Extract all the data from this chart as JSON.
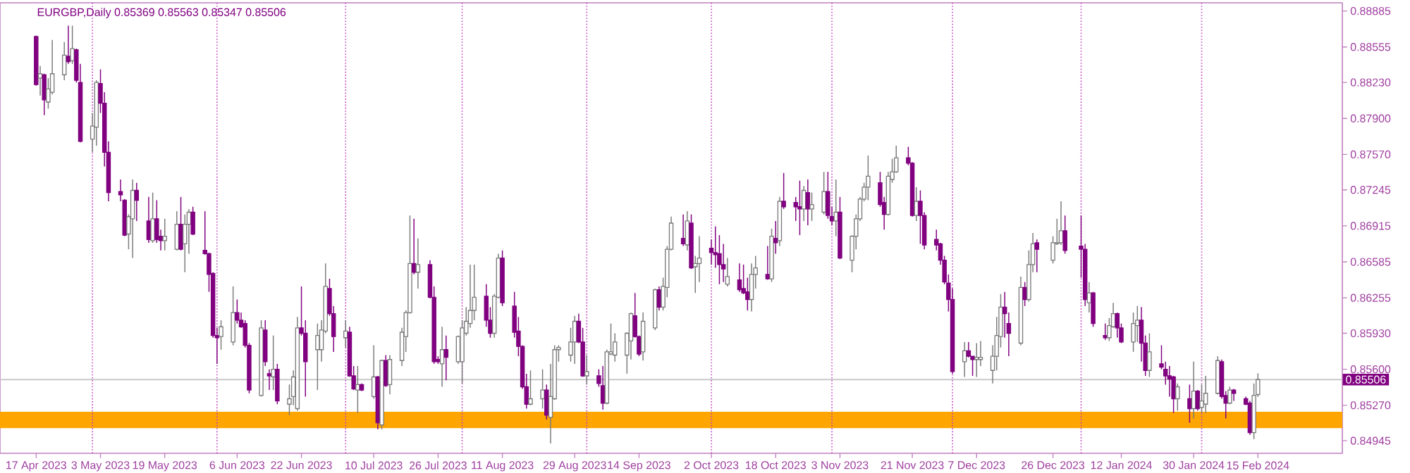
{
  "chart_data": {
    "type": "candlestick",
    "title": "EURGBP,Daily  0.85369 0.85563 0.85347 0.85506",
    "x": [
      "2023-04-17",
      "2023-04-18",
      "2023-04-19",
      "2023-04-20",
      "2023-04-21",
      "2023-04-24",
      "2023-04-25",
      "2023-04-26",
      "2023-04-27",
      "2023-04-28",
      "2023-05-01",
      "2023-05-02",
      "2023-05-03",
      "2023-05-04",
      "2023-05-05",
      "2023-05-08",
      "2023-05-09",
      "2023-05-10",
      "2023-05-11",
      "2023-05-12",
      "2023-05-15",
      "2023-05-16",
      "2023-05-17",
      "2023-05-18",
      "2023-05-19",
      "2023-05-22",
      "2023-05-23",
      "2023-05-24",
      "2023-05-25",
      "2023-05-26",
      "2023-05-29",
      "2023-05-30",
      "2023-05-31",
      "2023-06-01",
      "2023-06-02",
      "2023-06-05",
      "2023-06-06",
      "2023-06-07",
      "2023-06-08",
      "2023-06-09",
      "2023-06-12",
      "2023-06-13",
      "2023-06-14",
      "2023-06-15",
      "2023-06-16",
      "2023-06-19",
      "2023-06-20",
      "2023-06-21",
      "2023-06-22",
      "2023-06-23",
      "2023-06-26",
      "2023-06-27",
      "2023-06-28",
      "2023-06-29",
      "2023-06-30",
      "2023-07-03",
      "2023-07-04",
      "2023-07-05",
      "2023-07-06",
      "2023-07-07",
      "2023-07-10",
      "2023-07-11",
      "2023-07-12",
      "2023-07-13",
      "2023-07-14",
      "2023-07-17",
      "2023-07-18",
      "2023-07-19",
      "2023-07-20",
      "2023-07-21",
      "2023-07-24",
      "2023-07-25",
      "2023-07-26",
      "2023-07-27",
      "2023-07-28",
      "2023-07-31",
      "2023-08-01",
      "2023-08-02",
      "2023-08-03",
      "2023-08-04",
      "2023-08-07",
      "2023-08-08",
      "2023-08-09",
      "2023-08-10",
      "2023-08-11",
      "2023-08-14",
      "2023-08-15",
      "2023-08-16",
      "2023-08-17",
      "2023-08-18",
      "2023-08-21",
      "2023-08-22",
      "2023-08-23",
      "2023-08-24",
      "2023-08-25",
      "2023-08-28",
      "2023-08-29",
      "2023-08-30",
      "2023-08-31",
      "2023-09-01",
      "2023-09-04",
      "2023-09-05",
      "2023-09-06",
      "2023-09-07",
      "2023-09-08",
      "2023-09-11",
      "2023-09-12",
      "2023-09-13",
      "2023-09-14",
      "2023-09-15",
      "2023-09-18",
      "2023-09-19",
      "2023-09-20",
      "2023-09-21",
      "2023-09-22",
      "2023-09-25",
      "2023-09-26",
      "2023-09-27",
      "2023-09-28",
      "2023-09-29",
      "2023-10-02",
      "2023-10-03",
      "2023-10-04",
      "2023-10-05",
      "2023-10-06",
      "2023-10-09",
      "2023-10-10",
      "2023-10-11",
      "2023-10-12",
      "2023-10-13",
      "2023-10-16",
      "2023-10-17",
      "2023-10-18",
      "2023-10-19",
      "2023-10-20",
      "2023-10-23",
      "2023-10-24",
      "2023-10-25",
      "2023-10-26",
      "2023-10-27",
      "2023-10-30",
      "2023-10-31",
      "2023-11-01",
      "2023-11-02",
      "2023-11-03",
      "2023-11-06",
      "2023-11-07",
      "2023-11-08",
      "2023-11-09",
      "2023-11-10",
      "2023-11-13",
      "2023-11-14",
      "2023-11-15",
      "2023-11-16",
      "2023-11-17",
      "2023-11-20",
      "2023-11-21",
      "2023-11-22",
      "2023-11-23",
      "2023-11-24",
      "2023-11-27",
      "2023-11-28",
      "2023-11-29",
      "2023-11-30",
      "2023-12-01",
      "2023-12-04",
      "2023-12-05",
      "2023-12-06",
      "2023-12-07",
      "2023-12-08",
      "2023-12-11",
      "2023-12-12",
      "2023-12-13",
      "2023-12-14",
      "2023-12-15",
      "2023-12-18",
      "2023-12-19",
      "2023-12-20",
      "2023-12-21",
      "2023-12-22",
      "2023-12-26",
      "2023-12-27",
      "2023-12-28",
      "2023-12-29",
      "2024-01-02",
      "2024-01-03",
      "2024-01-04",
      "2024-01-05",
      "2024-01-08",
      "2024-01-09",
      "2024-01-10",
      "2024-01-11",
      "2024-01-12",
      "2024-01-15",
      "2024-01-16",
      "2024-01-17",
      "2024-01-18",
      "2024-01-19",
      "2024-01-22",
      "2024-01-23",
      "2024-01-24",
      "2024-01-25",
      "2024-01-26",
      "2024-01-29",
      "2024-01-30",
      "2024-01-31",
      "2024-02-01",
      "2024-02-02",
      "2024-02-05",
      "2024-02-06",
      "2024-02-07",
      "2024-02-08",
      "2024-02-09",
      "2024-02-12",
      "2024-02-13",
      "2024-02-14",
      "2024-02-15"
    ],
    "ohlc": [
      [
        0.8865,
        0.8866,
        0.882,
        0.8821
      ],
      [
        0.8827,
        0.8838,
        0.8811,
        0.8831
      ],
      [
        0.883,
        0.8831,
        0.8793,
        0.8807
      ],
      [
        0.8805,
        0.8827,
        0.8799,
        0.8817
      ],
      [
        0.8814,
        0.8862,
        0.8812,
        0.8831
      ],
      [
        0.883,
        0.886,
        0.8825,
        0.8848
      ],
      [
        0.8847,
        0.8875,
        0.884,
        0.8842
      ],
      [
        0.8843,
        0.8875,
        0.884,
        0.8854
      ],
      [
        0.8853,
        0.8854,
        0.8823,
        0.8825
      ],
      [
        0.8823,
        0.884,
        0.8768,
        0.8769
      ],
      [
        0.8771,
        0.8795,
        0.8759,
        0.8783
      ],
      [
        0.8782,
        0.8825,
        0.8765,
        0.8823
      ],
      [
        0.8822,
        0.8835,
        0.8795,
        0.8804
      ],
      [
        0.8804,
        0.8814,
        0.8746,
        0.8759
      ],
      [
        0.8759,
        0.8769,
        0.8714,
        0.8722
      ],
      [
        0.8723,
        0.8734,
        0.8714,
        0.872
      ],
      [
        0.8715,
        0.8716,
        0.8682,
        0.8683
      ],
      [
        0.8684,
        0.8702,
        0.867,
        0.87
      ],
      [
        0.8698,
        0.8734,
        0.8662,
        0.8724
      ],
      [
        0.8724,
        0.8731,
        0.8696,
        0.8715
      ],
      [
        0.8696,
        0.8718,
        0.8676,
        0.8679
      ],
      [
        0.8678,
        0.8722,
        0.8676,
        0.8698
      ],
      [
        0.8698,
        0.8715,
        0.8676,
        0.8679
      ],
      [
        0.8682,
        0.8688,
        0.8669,
        0.8678
      ],
      [
        0.8678,
        0.8698,
        0.8669,
        0.8682
      ],
      [
        0.867,
        0.8705,
        0.8669,
        0.8693
      ],
      [
        0.8693,
        0.8718,
        0.8669,
        0.867
      ],
      [
        0.8675,
        0.8702,
        0.8649,
        0.8693
      ],
      [
        0.8693,
        0.8707,
        0.8666,
        0.8704
      ],
      [
        0.8704,
        0.8709,
        0.8683,
        0.8684
      ],
      [
        0.8669,
        0.8705,
        0.8665,
        0.8666
      ],
      [
        0.8666,
        0.8667,
        0.8631,
        0.8647
      ],
      [
        0.8648,
        0.8649,
        0.8589,
        0.8591
      ],
      [
        0.8591,
        0.8598,
        0.8565,
        0.8589
      ],
      [
        0.859,
        0.8605,
        0.8578,
        0.8599
      ],
      [
        0.8585,
        0.8636,
        0.8582,
        0.8612
      ],
      [
        0.8612,
        0.8624,
        0.8602,
        0.8605
      ],
      [
        0.8605,
        0.8612,
        0.8598,
        0.8599
      ],
      [
        0.8602,
        0.8605,
        0.858,
        0.8582
      ],
      [
        0.8582,
        0.8584,
        0.8538,
        0.8541
      ],
      [
        0.8536,
        0.8605,
        0.8535,
        0.8598
      ],
      [
        0.8596,
        0.8605,
        0.8563,
        0.8567
      ],
      [
        0.8556,
        0.856,
        0.8541,
        0.8554
      ],
      [
        0.8553,
        0.8591,
        0.8541,
        0.856
      ],
      [
        0.856,
        0.8565,
        0.8528,
        0.8531
      ],
      [
        0.8528,
        0.8546,
        0.8518,
        0.8533
      ],
      [
        0.8535,
        0.8559,
        0.8527,
        0.8553
      ],
      [
        0.8524,
        0.8608,
        0.8522,
        0.8598
      ],
      [
        0.8598,
        0.8636,
        0.8591,
        0.8593
      ],
      [
        0.8593,
        0.8605,
        0.8535,
        0.8567
      ],
      [
        0.8578,
        0.8602,
        0.8541,
        0.8591
      ],
      [
        0.8578,
        0.8605,
        0.8567,
        0.8596
      ],
      [
        0.8595,
        0.8657,
        0.8593,
        0.8636
      ],
      [
        0.8634,
        0.8643,
        0.8609,
        0.8611
      ],
      [
        0.8611,
        0.8618,
        0.8576,
        0.859
      ],
      [
        0.8589,
        0.8605,
        0.858,
        0.8595
      ],
      [
        0.8594,
        0.8599,
        0.8553,
        0.8554
      ],
      [
        0.8554,
        0.8563,
        0.8541,
        0.8542
      ],
      [
        0.8541,
        0.8563,
        0.852,
        0.8546
      ],
      [
        0.8546,
        0.8547,
        0.854,
        0.8541
      ],
      [
        0.8535,
        0.8582,
        0.8533,
        0.8553
      ],
      [
        0.8553,
        0.8554,
        0.8505,
        0.8511
      ],
      [
        0.8509,
        0.8569,
        0.8505,
        0.8568
      ],
      [
        0.8568,
        0.8573,
        0.8544,
        0.8545
      ],
      [
        0.8546,
        0.8573,
        0.8537,
        0.8569
      ],
      [
        0.8568,
        0.8598,
        0.8563,
        0.8594
      ],
      [
        0.859,
        0.8614,
        0.8576,
        0.8612
      ],
      [
        0.8612,
        0.8701,
        0.8611,
        0.8657
      ],
      [
        0.8657,
        0.8698,
        0.8647,
        0.8649
      ],
      [
        0.8649,
        0.868,
        0.8634,
        0.8656
      ],
      [
        0.8656,
        0.866,
        0.8625,
        0.8626
      ],
      [
        0.8626,
        0.8636,
        0.8565,
        0.8567
      ],
      [
        0.8569,
        0.8572,
        0.8565,
        0.8567
      ],
      [
        0.8565,
        0.8599,
        0.8544,
        0.8578
      ],
      [
        0.8578,
        0.8591,
        0.855,
        0.8571
      ],
      [
        0.8567,
        0.8591,
        0.8565,
        0.859
      ],
      [
        0.8567,
        0.8605,
        0.8547,
        0.8598
      ],
      [
        0.8593,
        0.8617,
        0.8591,
        0.8604
      ],
      [
        0.8602,
        0.8656,
        0.8598,
        0.8614
      ],
      [
        0.8614,
        0.8656,
        0.8605,
        0.8626
      ],
      [
        0.8627,
        0.8638,
        0.8599,
        0.8605
      ],
      [
        0.8605,
        0.8617,
        0.8589,
        0.8593
      ],
      [
        0.8593,
        0.8629,
        0.8589,
        0.8627
      ],
      [
        0.8626,
        0.8666,
        0.8625,
        0.8662
      ],
      [
        0.8662,
        0.8669,
        0.8618,
        0.8621
      ],
      [
        0.8618,
        0.8631,
        0.8589,
        0.8594
      ],
      [
        0.8595,
        0.8608,
        0.8572,
        0.8581
      ],
      [
        0.8581,
        0.8582,
        0.8542,
        0.8544
      ],
      [
        0.8544,
        0.8556,
        0.8524,
        0.8528
      ],
      [
        0.8528,
        0.8559,
        0.8527,
        0.8533
      ],
      [
        0.8533,
        0.856,
        0.8524,
        0.8541
      ],
      [
        0.8541,
        0.8546,
        0.8514,
        0.8518
      ],
      [
        0.8516,
        0.8565,
        0.8492,
        0.8535
      ],
      [
        0.8533,
        0.8582,
        0.8532,
        0.8578
      ],
      [
        0.8578,
        0.8582,
        0.8567,
        0.858
      ],
      [
        0.8573,
        0.8598,
        0.8567,
        0.8585
      ],
      [
        0.8585,
        0.8609,
        0.8565,
        0.8604
      ],
      [
        0.8604,
        0.8611,
        0.8584,
        0.8585
      ],
      [
        0.8585,
        0.8598,
        0.8553,
        0.8554
      ],
      [
        0.8554,
        0.8573,
        0.8546,
        0.8558
      ],
      [
        0.8554,
        0.856,
        0.8544,
        0.8547
      ],
      [
        0.8545,
        0.8563,
        0.8523,
        0.8529
      ],
      [
        0.8529,
        0.8578,
        0.8528,
        0.8576
      ],
      [
        0.8574,
        0.8602,
        0.8573,
        0.8576
      ],
      [
        0.8573,
        0.8593,
        0.8567,
        0.8585
      ],
      [
        0.8573,
        0.8594,
        0.8556,
        0.8593
      ],
      [
        0.8586,
        0.8612,
        0.8569,
        0.8611
      ],
      [
        0.8609,
        0.863,
        0.8589,
        0.859
      ],
      [
        0.859,
        0.8591,
        0.8572,
        0.8574
      ],
      [
        0.8576,
        0.8612,
        0.8568,
        0.8604
      ],
      [
        0.8598,
        0.8634,
        0.8596,
        0.8633
      ],
      [
        0.8633,
        0.8636,
        0.8614,
        0.8617
      ],
      [
        0.8617,
        0.8644,
        0.8614,
        0.8636
      ],
      [
        0.8635,
        0.8673,
        0.8626,
        0.867
      ],
      [
        0.867,
        0.87,
        0.8669,
        0.8694
      ],
      [
        0.868,
        0.8702,
        0.8673,
        0.8675
      ],
      [
        0.8674,
        0.8705,
        0.8669,
        0.8696
      ],
      [
        0.8694,
        0.8702,
        0.8652,
        0.8653
      ],
      [
        0.8654,
        0.8664,
        0.863,
        0.8657
      ],
      [
        0.8657,
        0.8682,
        0.864,
        0.8662
      ],
      [
        0.8671,
        0.8679,
        0.8656,
        0.8667
      ],
      [
        0.8667,
        0.8691,
        0.8653,
        0.8665
      ],
      [
        0.8666,
        0.8683,
        0.8638,
        0.8656
      ],
      [
        0.8656,
        0.8675,
        0.864,
        0.8652
      ],
      [
        0.8638,
        0.8662,
        0.8636,
        0.8645
      ],
      [
        0.8642,
        0.8657,
        0.8631,
        0.8633
      ],
      [
        0.8634,
        0.8656,
        0.8629,
        0.863
      ],
      [
        0.8631,
        0.8644,
        0.8614,
        0.8624
      ],
      [
        0.8624,
        0.8657,
        0.8613,
        0.8647
      ],
      [
        0.8647,
        0.8664,
        0.8634,
        0.8653
      ],
      [
        0.8647,
        0.8673,
        0.8642,
        0.8643
      ],
      [
        0.8643,
        0.8689,
        0.864,
        0.8682
      ],
      [
        0.868,
        0.8696,
        0.8666,
        0.8676
      ],
      [
        0.8678,
        0.8718,
        0.8673,
        0.8714
      ],
      [
        0.8714,
        0.874,
        0.8707,
        0.8709
      ],
      [
        0.8713,
        0.8718,
        0.8696,
        0.8709
      ],
      [
        0.8709,
        0.8733,
        0.8683,
        0.8707
      ],
      [
        0.8707,
        0.8728,
        0.8696,
        0.8724
      ],
      [
        0.8722,
        0.8734,
        0.8692,
        0.8707
      ],
      [
        0.8707,
        0.8722,
        0.8696,
        0.8711
      ],
      [
        0.8704,
        0.8741,
        0.8702,
        0.8723
      ],
      [
        0.8723,
        0.8741,
        0.8698,
        0.8701
      ],
      [
        0.87,
        0.8709,
        0.8692,
        0.8696
      ],
      [
        0.8696,
        0.8734,
        0.8682,
        0.8704
      ],
      [
        0.8704,
        0.8718,
        0.8661,
        0.8662
      ],
      [
        0.866,
        0.8683,
        0.8649,
        0.8682
      ],
      [
        0.8682,
        0.8702,
        0.867,
        0.8698
      ],
      [
        0.8698,
        0.8718,
        0.8696,
        0.8716
      ],
      [
        0.8716,
        0.8731,
        0.8714,
        0.8727
      ],
      [
        0.8727,
        0.8756,
        0.8715,
        0.8737
      ],
      [
        0.8731,
        0.8741,
        0.8709,
        0.8711
      ],
      [
        0.8713,
        0.8718,
        0.8688,
        0.8702
      ],
      [
        0.8702,
        0.8741,
        0.8701,
        0.8737
      ],
      [
        0.8734,
        0.8753,
        0.8731,
        0.8741
      ],
      [
        0.8741,
        0.8765,
        0.874,
        0.8754
      ],
      [
        0.8754,
        0.8764,
        0.8747,
        0.8749
      ],
      [
        0.8749,
        0.875,
        0.87,
        0.8701
      ],
      [
        0.8701,
        0.8727,
        0.8696,
        0.8714
      ],
      [
        0.8714,
        0.8724,
        0.8675,
        0.8701
      ],
      [
        0.8701,
        0.8704,
        0.867,
        0.8674
      ],
      [
        0.8679,
        0.8688,
        0.8669,
        0.8674
      ],
      [
        0.8675,
        0.8676,
        0.8656,
        0.866
      ],
      [
        0.866,
        0.8664,
        0.8638,
        0.864
      ],
      [
        0.8639,
        0.8647,
        0.8613,
        0.8624
      ],
      [
        0.8624,
        0.8634,
        0.8556,
        0.8558
      ],
      [
        0.8567,
        0.8585,
        0.8553,
        0.8577
      ],
      [
        0.8577,
        0.8585,
        0.8571,
        0.8572
      ],
      [
        0.8572,
        0.8572,
        0.8554,
        0.8569
      ],
      [
        0.8569,
        0.8584,
        0.8553,
        0.8571
      ],
      [
        0.8569,
        0.8586,
        0.8563,
        0.8571
      ],
      [
        0.8559,
        0.8582,
        0.8547,
        0.8572
      ],
      [
        0.8572,
        0.8608,
        0.8559,
        0.8591
      ],
      [
        0.859,
        0.8629,
        0.858,
        0.8617
      ],
      [
        0.8617,
        0.8631,
        0.8589,
        0.8611
      ],
      [
        0.8602,
        0.8612,
        0.8572,
        0.8593
      ],
      [
        0.8584,
        0.8645,
        0.8582,
        0.8635
      ],
      [
        0.8635,
        0.864,
        0.8618,
        0.8624
      ],
      [
        0.8624,
        0.8669,
        0.8622,
        0.8656
      ],
      [
        0.8656,
        0.8685,
        0.8649,
        0.8675
      ],
      [
        0.8676,
        0.8679,
        0.8649,
        0.867
      ],
      [
        0.866,
        0.8682,
        0.8657,
        0.8676
      ],
      [
        0.8675,
        0.8698,
        0.8674,
        0.8676
      ],
      [
        0.8676,
        0.8714,
        0.8674,
        0.8687
      ],
      [
        0.8687,
        0.8701,
        0.8666,
        0.8669
      ],
      [
        0.8673,
        0.8701,
        0.8644,
        0.867
      ],
      [
        0.867,
        0.8675,
        0.8618,
        0.8624
      ],
      [
        0.8621,
        0.864,
        0.8612,
        0.863
      ],
      [
        0.863,
        0.8631,
        0.8599,
        0.8602
      ],
      [
        0.8591,
        0.8602,
        0.8587,
        0.8589
      ],
      [
        0.8589,
        0.8607,
        0.8586,
        0.86
      ],
      [
        0.8599,
        0.8621,
        0.8598,
        0.8611
      ],
      [
        0.8611,
        0.8612,
        0.8589,
        0.8598
      ],
      [
        0.8598,
        0.8602,
        0.8584,
        0.8585
      ],
      [
        0.8585,
        0.8612,
        0.8576,
        0.8602
      ],
      [
        0.86,
        0.8618,
        0.8585,
        0.8605
      ],
      [
        0.8605,
        0.8617,
        0.8567,
        0.8584
      ],
      [
        0.8584,
        0.8591,
        0.8554,
        0.8559
      ],
      [
        0.8559,
        0.8593,
        0.8553,
        0.8576
      ],
      [
        0.8565,
        0.8582,
        0.856,
        0.8562
      ],
      [
        0.856,
        0.8567,
        0.8546,
        0.8554
      ],
      [
        0.8554,
        0.8563,
        0.8535,
        0.8551
      ],
      [
        0.8553,
        0.8554,
        0.852,
        0.8533
      ],
      [
        0.8533,
        0.8547,
        0.8522,
        0.8544
      ],
      [
        0.8533,
        0.8546,
        0.8511,
        0.8524
      ],
      [
        0.8524,
        0.8567,
        0.8515,
        0.854
      ],
      [
        0.854,
        0.8541,
        0.8522,
        0.8524
      ],
      [
        0.8525,
        0.8546,
        0.852,
        0.8531
      ],
      [
        0.8528,
        0.8554,
        0.852,
        0.8538
      ],
      [
        0.8538,
        0.8572,
        0.8537,
        0.8568
      ],
      [
        0.8567,
        0.8569,
        0.8533,
        0.8535
      ],
      [
        0.8536,
        0.854,
        0.8515,
        0.8529
      ],
      [
        0.8529,
        0.8544,
        0.8528,
        0.8541
      ],
      [
        0.8541,
        0.8542,
        0.8531,
        0.8538
      ],
      [
        0.8533,
        0.8535,
        0.8527,
        0.8528
      ],
      [
        0.8529,
        0.8531,
        0.85,
        0.8502
      ],
      [
        0.8502,
        0.8547,
        0.8496,
        0.8536
      ],
      [
        0.85369,
        0.85563,
        0.85347,
        0.85506
      ]
    ],
    "xlim": [
      "2023-04-08",
      "2024-03-07"
    ],
    "xticks": [
      {
        "value": "2023-04-17",
        "label": "17 Apr 2023"
      },
      {
        "value": "2023-05-03",
        "label": "3 May 2023"
      },
      {
        "value": "2023-05-19",
        "label": "19 May 2023"
      },
      {
        "value": "2023-06-06",
        "label": "6 Jun 2023"
      },
      {
        "value": "2023-06-22",
        "label": "22 Jun 2023"
      },
      {
        "value": "2023-07-10",
        "label": "10 Jul 2023"
      },
      {
        "value": "2023-07-26",
        "label": "26 Jul 2023"
      },
      {
        "value": "2023-08-11",
        "label": "11 Aug 2023"
      },
      {
        "value": "2023-08-29",
        "label": "29 Aug 2023"
      },
      {
        "value": "2023-09-14",
        "label": "14 Sep 2023"
      },
      {
        "value": "2023-10-02",
        "label": "2 Oct 2023"
      },
      {
        "value": "2023-10-18",
        "label": "18 Oct 2023"
      },
      {
        "value": "2023-11-03",
        "label": "3 Nov 2023"
      },
      {
        "value": "2023-11-21",
        "label": "21 Nov 2023"
      },
      {
        "value": "2023-12-07",
        "label": "7 Dec 2023"
      },
      {
        "value": "2023-12-26",
        "label": "26 Dec 2023"
      },
      {
        "value": "2024-01-12",
        "label": "12 Jan 2024"
      },
      {
        "value": "2024-01-30",
        "label": "30 Jan 2024"
      },
      {
        "value": "2024-02-15",
        "label": "15 Feb 2024"
      }
    ],
    "ylim": [
      0.8483,
      0.8896
    ],
    "yticks": [
      0.84945,
      {
        "value": 0.8527,
        "label": "0.85270"
      },
      {
        "value": 0.856,
        "label": "0.85600"
      },
      {
        "value": 0.8593,
        "label": "0.85930"
      },
      0.86255,
      0.86585,
      0.86915,
      0.87245,
      {
        "value": 0.8757,
        "label": "0.87570"
      },
      {
        "value": 0.879,
        "label": "0.87900"
      },
      {
        "value": 0.8823,
        "label": "0.88230"
      },
      0.88555,
      0.88885
    ],
    "ref_lines": [
      {
        "axis": "y",
        "value": 0.85506,
        "label": "0.85506",
        "color": "#c8c8c8",
        "line_style": "solid"
      },
      {
        "axis": "x",
        "value": "2023-05-01",
        "color": "#c040c0",
        "line_style": "dotted"
      },
      {
        "axis": "x",
        "value": "2023-06-01",
        "color": "#c040c0",
        "line_style": "dotted"
      },
      {
        "axis": "x",
        "value": "2023-07-03",
        "color": "#c040c0",
        "line_style": "dotted"
      },
      {
        "axis": "x",
        "value": "2023-08-01",
        "color": "#c040c0",
        "line_style": "dotted"
      },
      {
        "axis": "x",
        "value": "2023-09-01",
        "color": "#c040c0",
        "line_style": "dotted"
      },
      {
        "axis": "x",
        "value": "2023-10-02",
        "color": "#c040c0",
        "line_style": "dotted"
      },
      {
        "axis": "x",
        "value": "2023-11-01",
        "color": "#c040c0",
        "line_style": "dotted"
      },
      {
        "axis": "x",
        "value": "2023-12-01",
        "color": "#c040c0",
        "line_style": "dotted"
      },
      {
        "axis": "x",
        "value": "2024-01-02",
        "color": "#c040c0",
        "line_style": "dotted"
      },
      {
        "axis": "x",
        "value": "2024-02-01",
        "color": "#c040c0",
        "line_style": "dotted"
      }
    ],
    "bands": [
      {
        "axis": "y",
        "from": 0.8506,
        "to": 0.8521,
        "color": "#ffa500"
      }
    ]
  }
}
